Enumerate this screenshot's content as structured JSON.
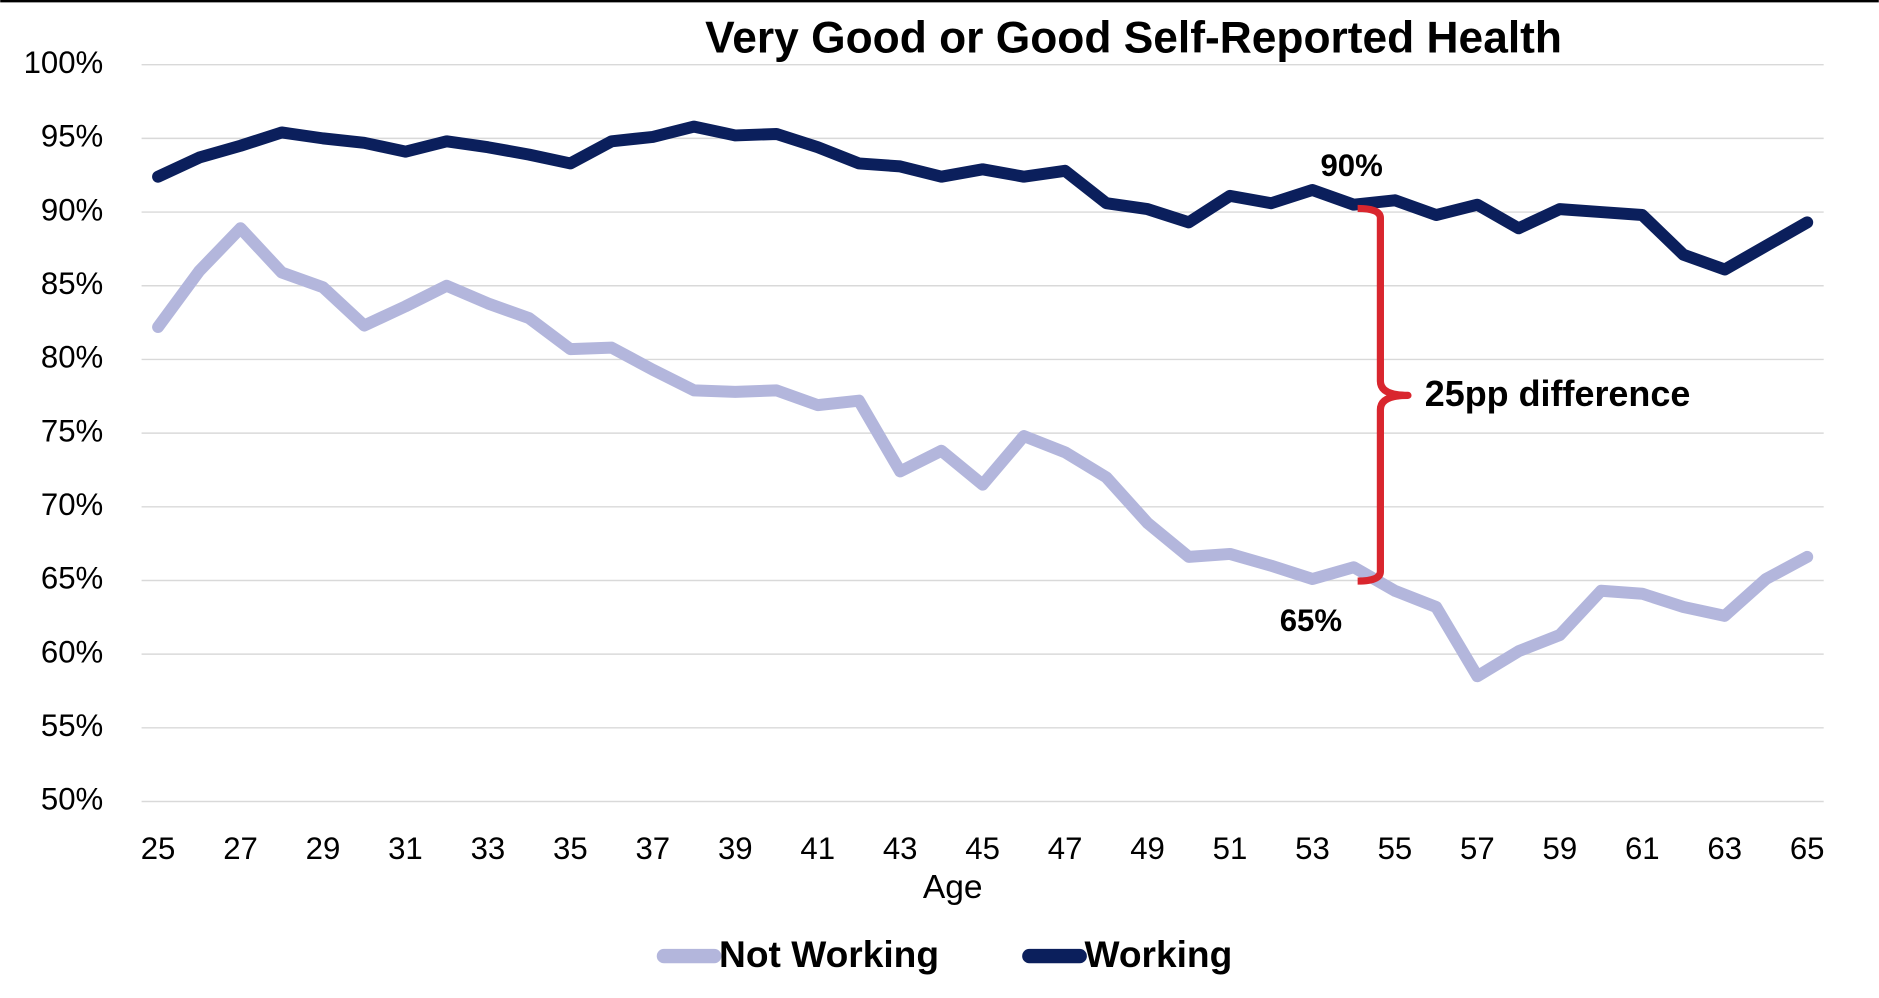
{
  "chart_data": {
    "type": "line",
    "title": "Very Good or Good Self-Reported Health",
    "x_label": "Age",
    "x": [
      25,
      26,
      27,
      28,
      29,
      30,
      31,
      32,
      33,
      34,
      35,
      36,
      37,
      38,
      39,
      40,
      41,
      42,
      43,
      44,
      45,
      46,
      47,
      48,
      49,
      50,
      51,
      52,
      53,
      54,
      55,
      56,
      57,
      58,
      59,
      60,
      61,
      62,
      63,
      64,
      65
    ],
    "series": [
      {
        "name": "Not Working",
        "color": "#b3b6dc",
        "values": [
          82.2,
          86.0,
          88.9,
          85.9,
          84.9,
          82.3,
          83.6,
          85.0,
          83.8,
          82.8,
          80.7,
          80.8,
          79.3,
          77.9,
          77.8,
          77.9,
          76.9,
          77.2,
          72.4,
          73.8,
          71.5,
          74.8,
          73.7,
          72.0,
          68.9,
          66.6,
          66.8,
          66.0,
          65.1,
          65.9,
          64.3,
          63.2,
          58.5,
          60.2,
          61.3,
          64.3,
          64.1,
          63.2,
          62.6,
          65.1,
          66.6
        ]
      },
      {
        "name": "Working",
        "color": "#0b1f5c",
        "values": [
          92.4,
          93.7,
          94.5,
          95.4,
          95.0,
          94.7,
          94.1,
          94.8,
          94.4,
          93.9,
          93.3,
          94.8,
          95.1,
          95.8,
          95.2,
          95.3,
          94.4,
          93.3,
          93.1,
          92.4,
          92.9,
          92.4,
          92.8,
          90.6,
          90.2,
          89.3,
          91.1,
          90.6,
          91.5,
          90.5,
          90.8,
          89.8,
          90.5,
          88.9,
          90.2,
          90.0,
          89.8,
          87.1,
          86.1,
          87.7,
          89.3
        ]
      }
    ],
    "xlim": [
      24.6,
      65.4
    ],
    "xticks": [
      25,
      27,
      29,
      31,
      33,
      35,
      37,
      39,
      41,
      43,
      45,
      47,
      49,
      51,
      53,
      55,
      57,
      59,
      61,
      63,
      65
    ],
    "ylim": [
      50,
      100
    ],
    "yticks": [
      {
        "value": 50,
        "label": "50%"
      },
      {
        "value": 55,
        "label": "55%"
      },
      {
        "value": 60,
        "label": "60%"
      },
      {
        "value": 65,
        "label": "65%"
      },
      {
        "value": 70,
        "label": "70%"
      },
      {
        "value": 75,
        "label": "75%"
      },
      {
        "value": 80,
        "label": "80%"
      },
      {
        "value": 85,
        "label": "85%"
      },
      {
        "value": 90,
        "label": "90%"
      },
      {
        "value": 95,
        "label": "95%"
      },
      {
        "value": 100,
        "label": "100%"
      }
    ],
    "grid": true,
    "legend": "bottom",
    "annotations": [
      "90%",
      "65%",
      "25pp difference"
    ],
    "annotation_color": "#d9262e"
  }
}
